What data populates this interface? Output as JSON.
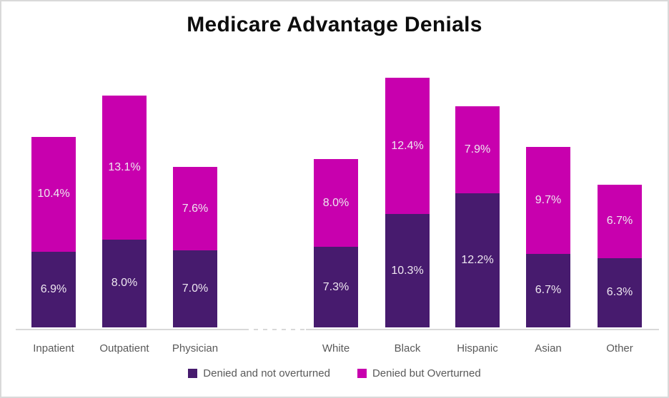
{
  "title": "Medicare Advantage Denials",
  "colors": {
    "denied_not_overturned": "#471b6e",
    "denied_but_overturned": "#c800ae",
    "axis_line": "#d9d9d9",
    "axis_label_text": "#595959",
    "bar_label_text": "#efe8f1",
    "title_text": "#0d0d0d",
    "frame_border": "#d9d9d9",
    "background": "#ffffff"
  },
  "legend": {
    "items": [
      {
        "label": "Denied and not overturned",
        "color": "#471b6e"
      },
      {
        "label": "Denied but Overturned",
        "color": "#c800ae"
      }
    ]
  },
  "chart_data": {
    "type": "bar",
    "subtype": "stacked-column",
    "title": "Medicare Advantage Denials",
    "categories": [
      "Inpatient",
      "Outpatient",
      "Physician",
      "White",
      "Black",
      "Hispanic",
      "Asian",
      "Other"
    ],
    "category_groups": [
      {
        "categories": [
          "Inpatient",
          "Outpatient",
          "Physician"
        ]
      },
      {
        "categories": [
          "White",
          "Black",
          "Hispanic",
          "Asian",
          "Other"
        ]
      }
    ],
    "series": [
      {
        "name": "Denied and not overturned",
        "color": "#471b6e",
        "values": [
          6.9,
          8.0,
          7.0,
          7.3,
          10.3,
          12.2,
          6.7,
          6.3
        ]
      },
      {
        "name": "Denied but Overturned",
        "color": "#c800ae",
        "values": [
          10.4,
          13.1,
          7.6,
          8.0,
          12.4,
          7.9,
          9.7,
          6.7
        ]
      }
    ],
    "stack_totals": [
      17.3,
      21.1,
      14.6,
      15.3,
      22.7,
      20.1,
      16.4,
      13.0
    ],
    "data_label_format": "one decimal percent, shown centered inside each segment",
    "xlabel": "",
    "ylabel": "",
    "y_axis_visible": false,
    "ylim": [
      0,
      24
    ],
    "grid": false,
    "legend_position": "bottom"
  }
}
